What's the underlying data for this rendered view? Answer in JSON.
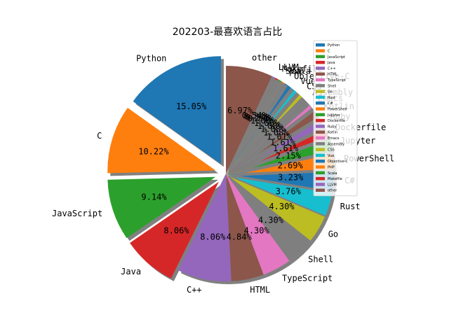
{
  "chart_data": {
    "type": "pie",
    "title": "202203-最喜欢语言占比",
    "legend_position": "top-right",
    "slices": [
      {
        "label": "Python",
        "value": 15.05,
        "pct_label": "15.05%",
        "color": "#1f77b4",
        "exploded": true
      },
      {
        "label": "C",
        "value": 10.22,
        "pct_label": "10.22%",
        "color": "#ff7f0e",
        "exploded": true
      },
      {
        "label": "JavaScript",
        "value": 9.14,
        "pct_label": "9.14%",
        "color": "#2ca02c",
        "exploded": true
      },
      {
        "label": "Java",
        "value": 8.06,
        "pct_label": "8.06%",
        "color": "#d62728",
        "exploded": true
      },
      {
        "label": "C++",
        "value": 8.06,
        "pct_label": "8.06%",
        "color": "#9467bd",
        "exploded": false
      },
      {
        "label": "HTML",
        "value": 4.84,
        "pct_label": "4.84%",
        "color": "#8c564b",
        "exploded": false
      },
      {
        "label": "TypeScript",
        "value": 4.3,
        "pct_label": "4.30%",
        "color": "#e377c2",
        "exploded": false
      },
      {
        "label": "Shell",
        "value": 4.3,
        "pct_label": "4.30%",
        "color": "#7f7f7f",
        "exploded": false
      },
      {
        "label": "Go",
        "value": 4.3,
        "pct_label": "4.30%",
        "color": "#bcbd22",
        "exploded": false
      },
      {
        "label": "Rust",
        "value": 3.76,
        "pct_label": "3.76%",
        "color": "#17becf",
        "exploded": false
      },
      {
        "label": "C#",
        "value": 3.23,
        "pct_label": "3.23%",
        "color": "#1f77b4",
        "exploded": false
      },
      {
        "label": "PowerShell",
        "value": 2.69,
        "pct_label": "2.69%",
        "color": "#ff7f0e",
        "exploded": false
      },
      {
        "label": "Jupyter",
        "value": 2.15,
        "pct_label": "2.15%",
        "color": "#2ca02c",
        "exploded": false
      },
      {
        "label": "Dockerfile",
        "value": 1.61,
        "pct_label": "1.61%",
        "color": "#d62728",
        "exploded": false
      },
      {
        "label": "Ruby",
        "value": 1.61,
        "pct_label": "1.61%",
        "color": "#9467bd",
        "exploded": false
      },
      {
        "label": "Kotlin",
        "value": 1.61,
        "pct_label": "1.61%",
        "color": "#8c564b",
        "exploded": false
      },
      {
        "label": "Emacs",
        "value": 1.08,
        "pct_label": "1.08%",
        "color": "#e377c2",
        "exploded": false
      },
      {
        "label": "Assembly",
        "value": 1.08,
        "pct_label": "1.08%",
        "color": "#7f7f7f",
        "exploded": false
      },
      {
        "label": "CSS",
        "value": 1.08,
        "pct_label": "1.08%",
        "color": "#bcbd22",
        "exploded": false
      },
      {
        "label": "Vue",
        "value": 1.08,
        "pct_label": "1.08%",
        "color": "#17becf",
        "exploded": false
      },
      {
        "label": "Objective-C",
        "value": 1.08,
        "pct_label": "1.08%",
        "color": "#1f77b4",
        "exploded": false
      },
      {
        "label": "PHP",
        "value": 0.54,
        "pct_label": "0.54%",
        "color": "#ff7f0e",
        "exploded": false
      },
      {
        "label": "Scala",
        "value": 0.54,
        "pct_label": "0.54%",
        "color": "#2ca02c",
        "exploded": false
      },
      {
        "label": "Makefile",
        "value": 0.54,
        "pct_label": "0.54%",
        "color": "#d62728",
        "exploded": false
      },
      {
        "label": "LLVM",
        "value": 0.54,
        "pct_label": "0.54%",
        "color": "#9467bd",
        "exploded": false
      },
      {
        "label": "other",
        "value": 6.97,
        "pct_label": "6.97%",
        "color": "#8c564b",
        "exploded": false
      }
    ]
  }
}
